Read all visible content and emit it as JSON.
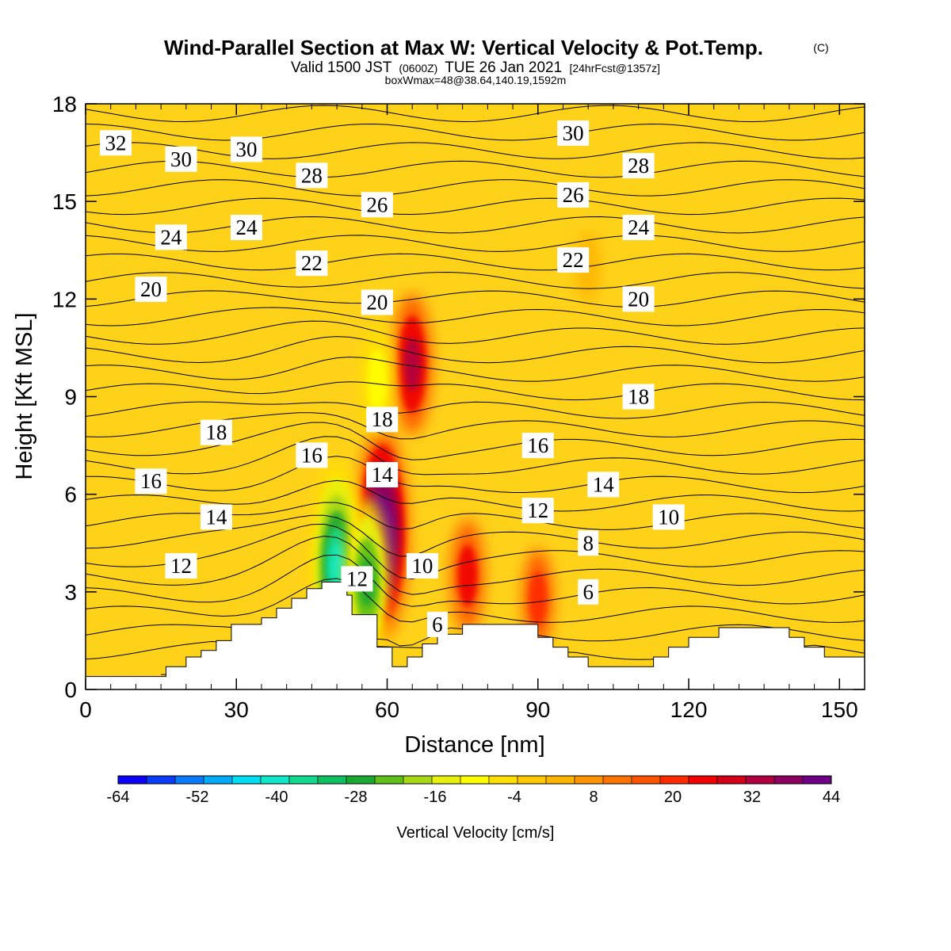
{
  "header": {
    "title": "Wind-Parallel Section at Max W: Vertical Velocity & Pot.Temp.",
    "copyright": "(C)",
    "valid_prefix": "Valid 1500 JST",
    "valid_zulu": "(0600Z)",
    "valid_date": "TUE 26 Jan 2021",
    "forecast_tag": "[24hrFcst@1357z]",
    "box_info": "boxWmax=48@38.64,140.19,1592m"
  },
  "colors": {
    "background_field": "#ffd21a",
    "terrain": "#ffffff",
    "contour_line": "#000000",
    "label_box": "#ffffff",
    "scale": [
      "#0b00f5",
      "#0a3cf8",
      "#0a78fa",
      "#00aaf8",
      "#00dcf0",
      "#10e8c8",
      "#12d890",
      "#10c060",
      "#1aa832",
      "#5ec018",
      "#a8d818",
      "#e8f010",
      "#ffff00",
      "#ffe000",
      "#ffc800",
      "#ffb400",
      "#ff9400",
      "#ff7400",
      "#ff5400",
      "#ff2a00",
      "#f00000",
      "#d20018",
      "#b00040",
      "#8c0060",
      "#6e0088"
    ]
  },
  "chart_data": {
    "type": "contour",
    "title": "Wind-Parallel Section at Max W: Vertical Velocity & Pot.Temp.",
    "xlabel": "Distance [nm]",
    "ylabel": "Height [Kft MSL]",
    "xlim": [
      0,
      155
    ],
    "ylim": [
      0,
      18
    ],
    "x_ticks": [
      0,
      30,
      60,
      90,
      120,
      150
    ],
    "y_ticks": [
      0,
      3,
      6,
      9,
      12,
      15,
      18
    ],
    "grid": false,
    "colorbar": {
      "label": "Vertical Velocity [cm/s]",
      "min": -64,
      "max": 44,
      "step": 4,
      "tick_labels": [
        "-64",
        "-52",
        "-40",
        "-28",
        "-16",
        "-4",
        "8",
        "20",
        "32",
        "44"
      ]
    },
    "terrain_profile": {
      "x": [
        0,
        16,
        20,
        23,
        26,
        29,
        35,
        38,
        41,
        44,
        47,
        52,
        53,
        55,
        58,
        61,
        64,
        67,
        70,
        75,
        81,
        90,
        93,
        96,
        100,
        110,
        113,
        116,
        120,
        126,
        140,
        143,
        147,
        155
      ],
      "kft": [
        0.4,
        0.7,
        1.0,
        1.2,
        1.5,
        2.0,
        2.2,
        2.5,
        2.8,
        3.1,
        3.3,
        2.9,
        2.3,
        2.3,
        1.3,
        0.7,
        1.0,
        1.4,
        1.7,
        2.0,
        2.0,
        1.6,
        1.3,
        1.0,
        0.7,
        0.7,
        1.0,
        1.3,
        1.6,
        1.9,
        1.6,
        1.3,
        1.0,
        0.7
      ]
    },
    "vertical_velocity_features": [
      {
        "x": 59,
        "kft": 4.8,
        "value": 44
      },
      {
        "x": 65,
        "kft": 10,
        "value": 24
      },
      {
        "x": 50,
        "kft": 3.8,
        "value": -44
      },
      {
        "x": 56,
        "kft": 3.3,
        "value": -32
      },
      {
        "x": 58,
        "kft": 9.5,
        "value": -16
      },
      {
        "x": 76,
        "kft": 3.5,
        "value": 16
      },
      {
        "x": 90,
        "kft": 2.8,
        "value": 12
      },
      {
        "x": 100,
        "kft": 13,
        "value": -4
      }
    ],
    "theta_contour_labels": [
      {
        "text": "32",
        "x": 6,
        "kft": 16.8
      },
      {
        "text": "30",
        "x": 19,
        "kft": 16.3
      },
      {
        "text": "30",
        "x": 32,
        "kft": 16.6
      },
      {
        "text": "28",
        "x": 45,
        "kft": 15.8
      },
      {
        "text": "26",
        "x": 58,
        "kft": 14.9
      },
      {
        "text": "30",
        "x": 97,
        "kft": 17.1
      },
      {
        "text": "28",
        "x": 110,
        "kft": 16.1
      },
      {
        "text": "26",
        "x": 97,
        "kft": 15.2
      },
      {
        "text": "24",
        "x": 17,
        "kft": 13.9
      },
      {
        "text": "24",
        "x": 32,
        "kft": 14.2
      },
      {
        "text": "24",
        "x": 110,
        "kft": 14.2
      },
      {
        "text": "22",
        "x": 45,
        "kft": 13.1
      },
      {
        "text": "22",
        "x": 97,
        "kft": 13.2
      },
      {
        "text": "20",
        "x": 13,
        "kft": 12.3
      },
      {
        "text": "20",
        "x": 58,
        "kft": 11.9
      },
      {
        "text": "20",
        "x": 110,
        "kft": 12.0
      },
      {
        "text": "18",
        "x": 59,
        "kft": 8.3
      },
      {
        "text": "18",
        "x": 26,
        "kft": 7.9
      },
      {
        "text": "18",
        "x": 110,
        "kft": 9.0
      },
      {
        "text": "16",
        "x": 13,
        "kft": 6.4
      },
      {
        "text": "16",
        "x": 45,
        "kft": 7.2
      },
      {
        "text": "16",
        "x": 90,
        "kft": 7.5
      },
      {
        "text": "14",
        "x": 59,
        "kft": 6.6
      },
      {
        "text": "14",
        "x": 26,
        "kft": 5.3
      },
      {
        "text": "14",
        "x": 103,
        "kft": 6.3
      },
      {
        "text": "12",
        "x": 19,
        "kft": 3.8
      },
      {
        "text": "12",
        "x": 54,
        "kft": 3.4
      },
      {
        "text": "12",
        "x": 90,
        "kft": 5.5
      },
      {
        "text": "10",
        "x": 67,
        "kft": 3.8
      },
      {
        "text": "10",
        "x": 116,
        "kft": 5.3
      },
      {
        "text": "8",
        "x": 100,
        "kft": 4.5
      },
      {
        "text": "6",
        "x": 70,
        "kft": 2.0
      },
      {
        "text": "6",
        "x": 100,
        "kft": 3.0
      }
    ]
  }
}
